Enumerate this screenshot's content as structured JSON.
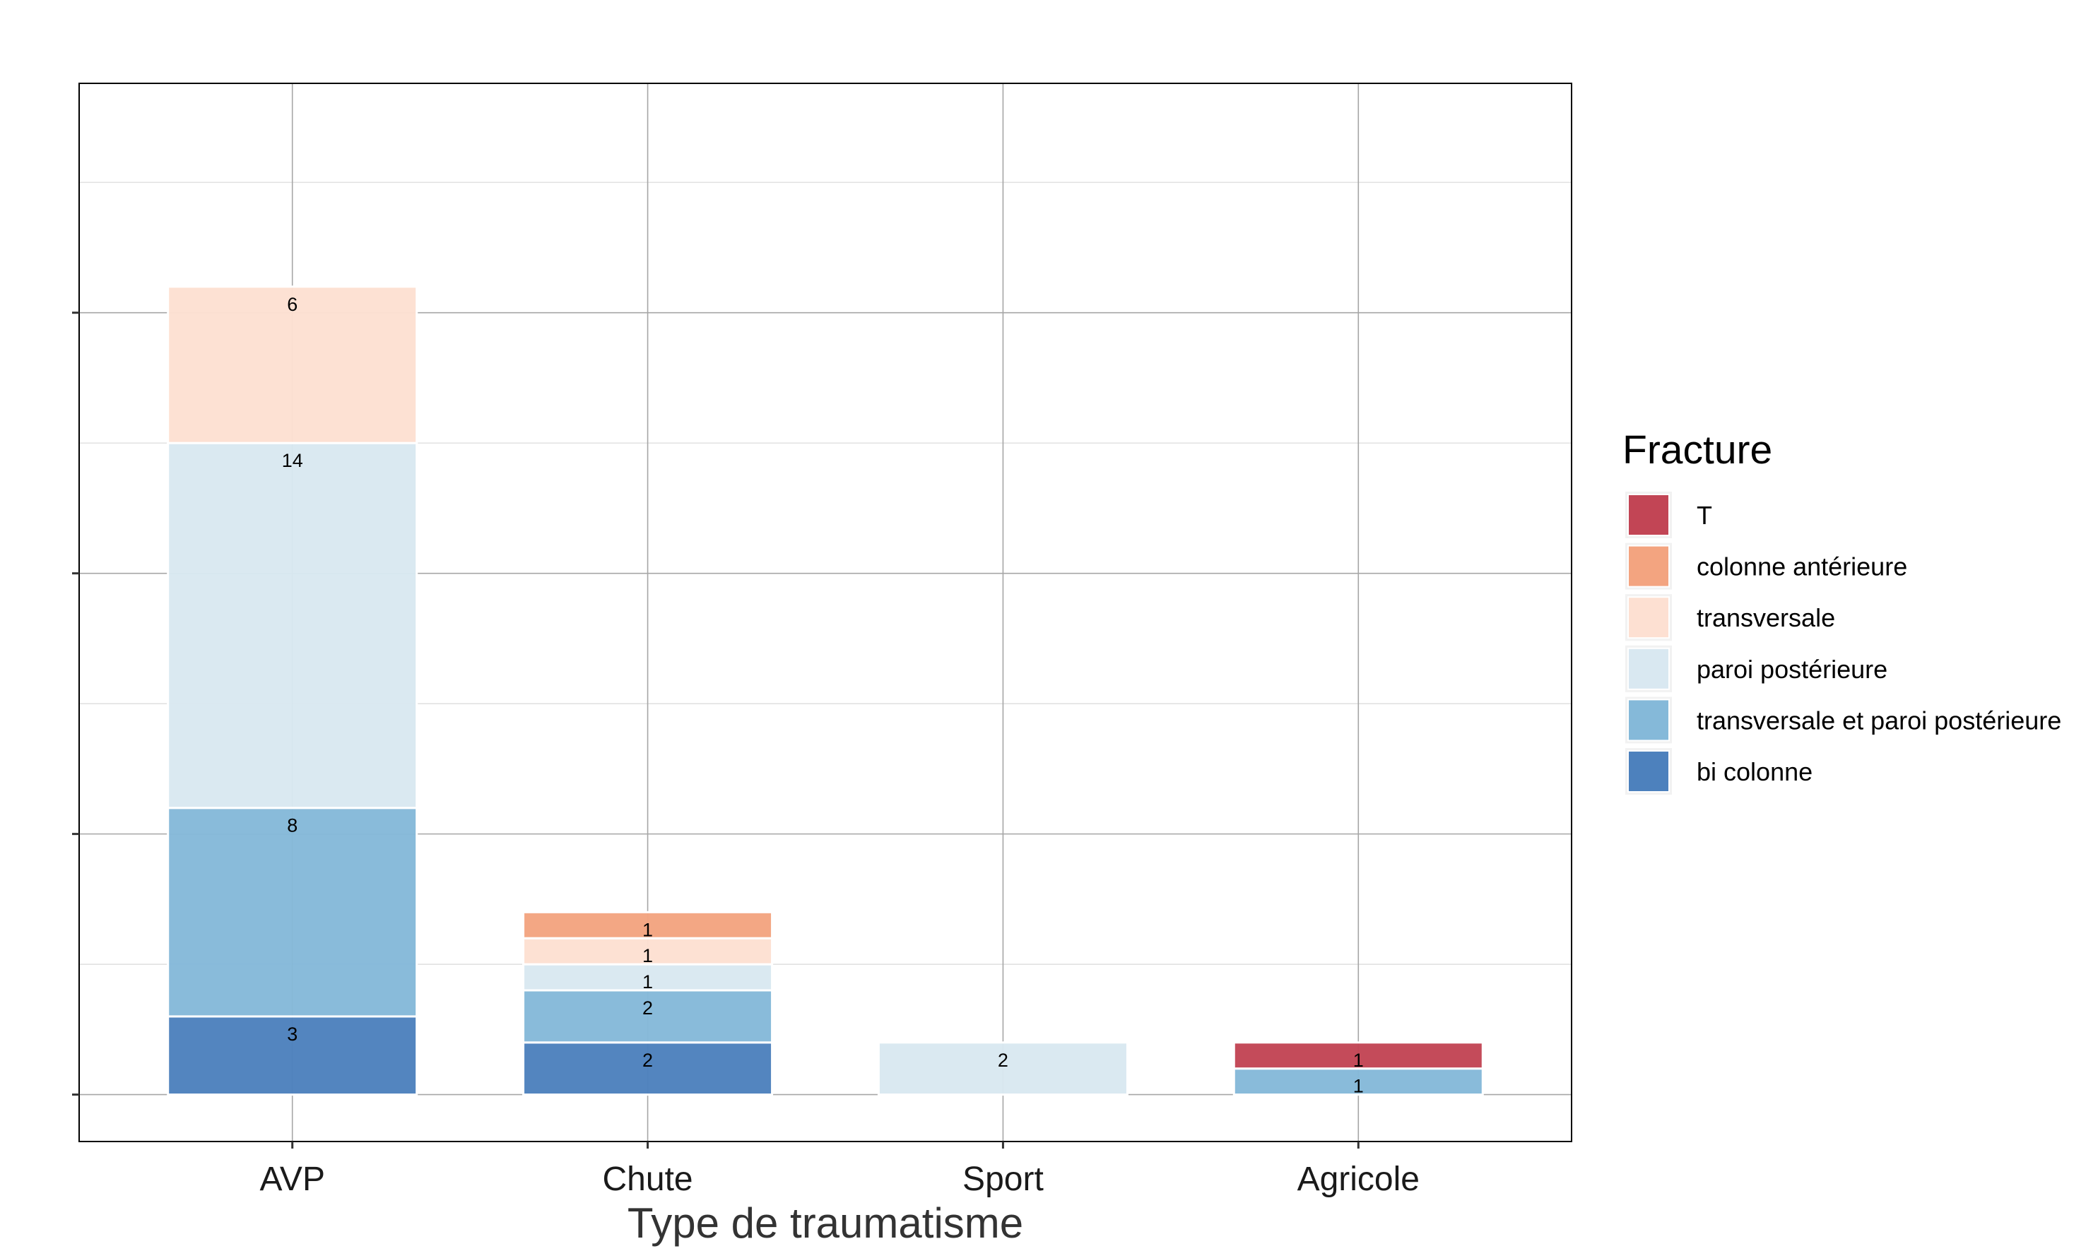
{
  "chart_data": {
    "type": "bar",
    "stacked": true,
    "xlabel": "Type de traumatisme",
    "ylabel": "",
    "categories": [
      "AVP",
      "Chute",
      "Sport",
      "Agricole"
    ],
    "ylim": [
      -1.8,
      38.8
    ],
    "grid": true,
    "legend": {
      "title": "Fracture",
      "placement": "right"
    },
    "series": [
      {
        "name": "bi colonne",
        "color": "#4D81BD",
        "values": [
          3,
          2,
          0,
          0
        ]
      },
      {
        "name": "transversale et paroi postérieure",
        "color": "#85B9D9",
        "values": [
          8,
          2,
          0,
          1
        ]
      },
      {
        "name": "paroi postérieure",
        "color": "#D9E8F1",
        "values": [
          14,
          1,
          2,
          0
        ]
      },
      {
        "name": "transversale",
        "color": "#FDE0D2",
        "values": [
          6,
          1,
          0,
          0
        ]
      },
      {
        "name": "colonne antérieure",
        "color": "#F3A480",
        "values": [
          0,
          1,
          0,
          0
        ]
      },
      {
        "name": "T",
        "color": "#C24555",
        "values": [
          0,
          0,
          0,
          1
        ]
      }
    ],
    "legend_order": [
      "T",
      "colonne antérieure",
      "transversale",
      "paroi postérieure",
      "transversale et paroi postérieure",
      "bi colonne"
    ]
  }
}
